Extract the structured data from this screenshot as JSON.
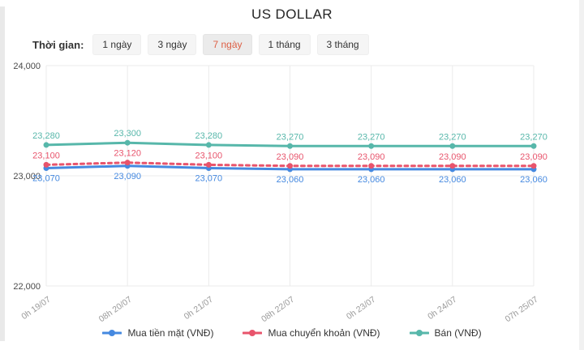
{
  "title": "US DOLLAR",
  "filter": {
    "label": "Thời gian:",
    "options": [
      {
        "label": "1 ngày",
        "selected": false
      },
      {
        "label": "3 ngày",
        "selected": false
      },
      {
        "label": "7 ngày",
        "selected": true
      },
      {
        "label": "1 tháng",
        "selected": false
      },
      {
        "label": "3 tháng",
        "selected": false
      }
    ],
    "selected_text_color": "#dd6046"
  },
  "chart_data": {
    "type": "line",
    "title": "US DOLLAR",
    "x": [
      "0h 19/07",
      "08h 20/07",
      "0h 21/07",
      "08h 22/07",
      "0h 23/07",
      "0h 24/07",
      "07h 25/07"
    ],
    "series": [
      {
        "name": "Mua tiền mặt (VNĐ)",
        "color": "#4589e0",
        "style": "solid",
        "label_position": "below",
        "values": [
          23070,
          23090,
          23070,
          23060,
          23060,
          23060,
          23060
        ]
      },
      {
        "name": "Mua chuyển khoản (VNĐ)",
        "color": "#e8546c",
        "style": "dashed",
        "label_position": "above",
        "values": [
          23100,
          23120,
          23100,
          23090,
          23090,
          23090,
          23090
        ]
      },
      {
        "name": "Bán (VNĐ)",
        "color": "#57b7aa",
        "style": "solid",
        "label_position": "above",
        "values": [
          23280,
          23300,
          23280,
          23270,
          23270,
          23270,
          23270
        ]
      }
    ],
    "ylim": [
      22000,
      24000
    ],
    "yticks": [
      24000,
      23000,
      22000
    ],
    "grid": true,
    "legend_position": "bottom",
    "grid_color": "#ebebeb",
    "axis_text_color": "#9a9a9a",
    "ytick_text_color": "#4a4a4a"
  }
}
